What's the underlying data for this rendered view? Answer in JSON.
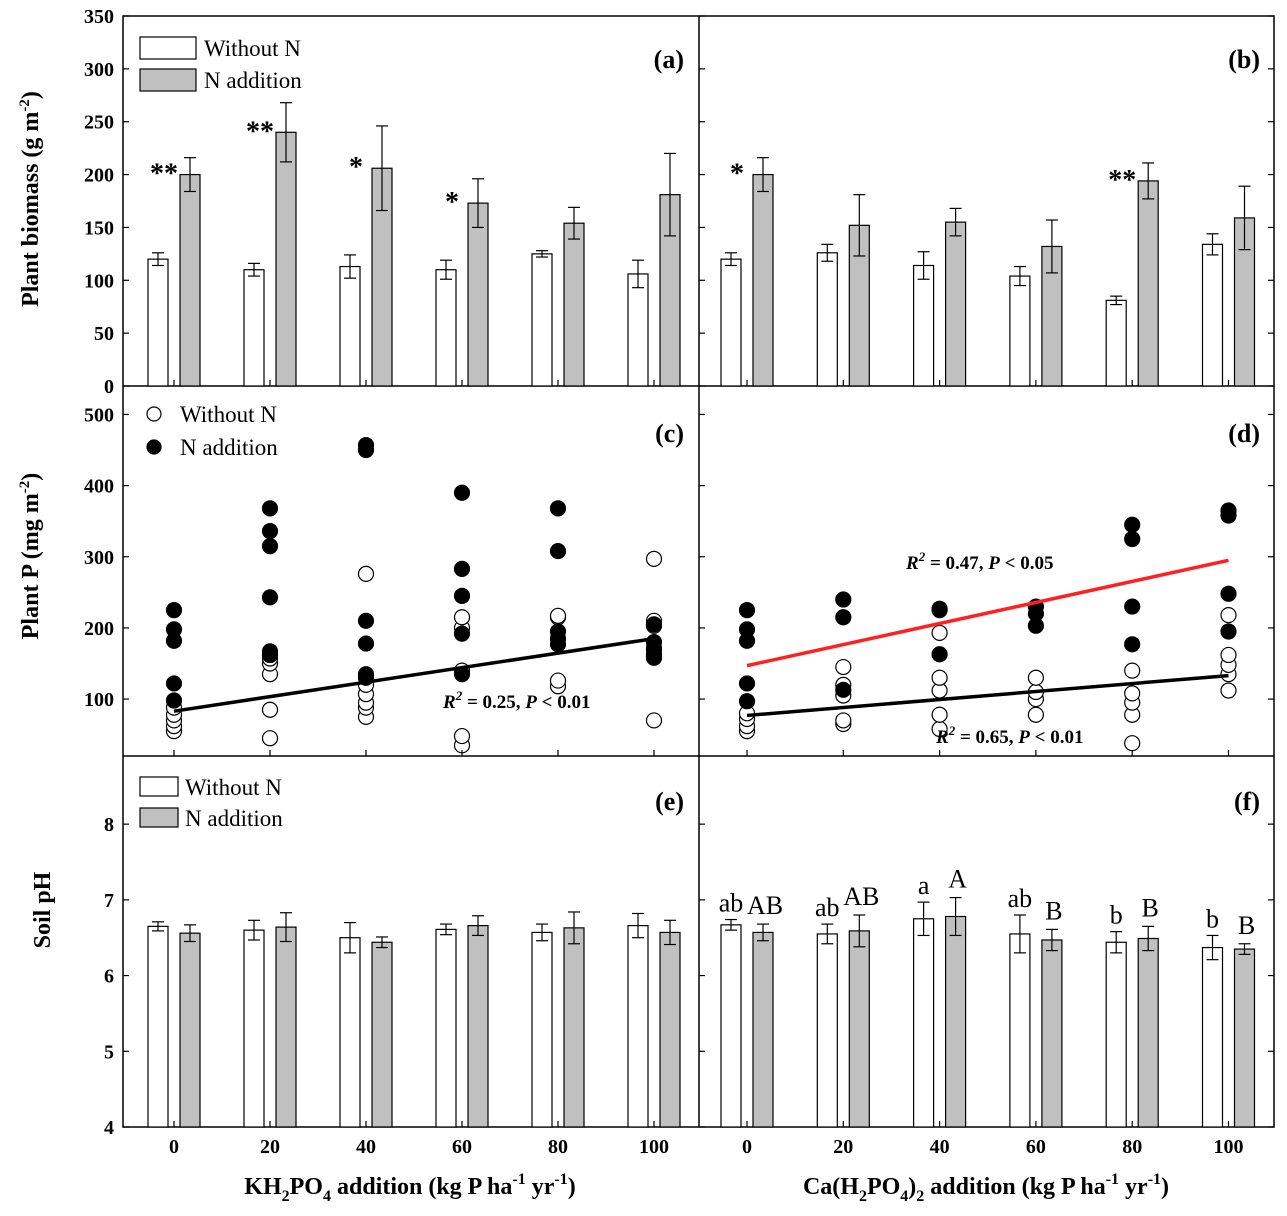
{
  "figure": {
    "ylabels": {
      "top": "Plant biomass (g m",
      "top_sup": "-2",
      "top_end": ")",
      "middle": "Plant P  (mg m",
      "middle_sup": "-2",
      "middle_end": ")",
      "bottom": "Soil pH"
    },
    "xlabels": {
      "left_a": "KH",
      "left_sub1": "2",
      "left_b": "PO",
      "left_sub2": "4",
      "left_c": " addition (kg P ha",
      "left_sup1": "-1",
      "left_d": " yr",
      "left_sup2": "-1",
      "left_e": ")",
      "right_a": "Ca(H",
      "right_sub1": "2",
      "right_b": "PO",
      "right_sub2": "4",
      "right_c": ")",
      "right_sub3": "2",
      "right_d": " addition (kg P ha",
      "right_sup1": "-1",
      "right_e": " yr",
      "right_sup2": "-1",
      "right_f": ")"
    },
    "legend": {
      "without_n": "Without N",
      "n_addition": "N addition"
    },
    "colors": {
      "without_n_fill": "#ffffff",
      "n_addition_fill": "#c0c0c0",
      "black_line": "#000000",
      "red_line": "#ff2020"
    }
  },
  "chart_data": [
    {
      "panel": "(a)",
      "type": "bar",
      "categories": [
        "0",
        "20",
        "40",
        "60",
        "80",
        "100"
      ],
      "ylim": [
        0,
        350
      ],
      "yticks": [
        0,
        50,
        100,
        150,
        200,
        250,
        300,
        350
      ],
      "series": [
        {
          "name": "Without N",
          "values": [
            120,
            110,
            113,
            110,
            125,
            106
          ],
          "errors": [
            6,
            6,
            11,
            9,
            3,
            13
          ]
        },
        {
          "name": "N addition",
          "values": [
            200,
            240,
            206,
            173,
            154,
            181
          ],
          "errors": [
            16,
            28,
            40,
            23,
            15,
            39
          ]
        }
      ],
      "annotations": [
        "**",
        "**",
        "*",
        "*",
        "",
        ""
      ]
    },
    {
      "panel": "(b)",
      "type": "bar",
      "categories": [
        "0",
        "20",
        "40",
        "60",
        "80",
        "100"
      ],
      "ylim": [
        0,
        350
      ],
      "series": [
        {
          "name": "Without N",
          "values": [
            120,
            126,
            114,
            104,
            81,
            134
          ],
          "errors": [
            6,
            8,
            13,
            9,
            4,
            10
          ]
        },
        {
          "name": "N addition",
          "values": [
            200,
            152,
            155,
            132,
            194,
            159
          ],
          "errors": [
            16,
            29,
            13,
            25,
            17,
            30
          ]
        }
      ],
      "annotations": [
        "*",
        "",
        "",
        "",
        "**",
        ""
      ]
    },
    {
      "panel": "(c)",
      "type": "scatter",
      "ylim": [
        20,
        540
      ],
      "yticks": [
        100,
        200,
        300,
        400,
        500
      ],
      "x": [
        0,
        20,
        40,
        60,
        80,
        100
      ],
      "series": [
        {
          "name": "Without N",
          "points": [
            [
              0,
              55
            ],
            [
              0,
              62
            ],
            [
              0,
              70
            ],
            [
              0,
              78
            ],
            [
              0,
              88
            ],
            [
              20,
              45
            ],
            [
              20,
              85
            ],
            [
              20,
              135
            ],
            [
              20,
              150
            ],
            [
              20,
              157
            ],
            [
              20,
              162
            ],
            [
              40,
              75
            ],
            [
              40,
              88
            ],
            [
              40,
              95
            ],
            [
              40,
              107
            ],
            [
              40,
              120
            ],
            [
              40,
              276
            ],
            [
              60,
              35
            ],
            [
              60,
              48
            ],
            [
              60,
              140
            ],
            [
              60,
              200
            ],
            [
              60,
              215
            ],
            [
              80,
              118
            ],
            [
              80,
              126
            ],
            [
              80,
              215
            ],
            [
              80,
              217
            ],
            [
              100,
              70
            ],
            [
              100,
              160
            ],
            [
              100,
              170
            ],
            [
              100,
              203
            ],
            [
              100,
              210
            ],
            [
              100,
              297
            ]
          ]
        },
        {
          "name": "N addition",
          "points": [
            [
              0,
              98
            ],
            [
              0,
              122
            ],
            [
              0,
              182
            ],
            [
              0,
              198
            ],
            [
              0,
              225
            ],
            [
              20,
              162
            ],
            [
              20,
              167
            ],
            [
              20,
              243
            ],
            [
              20,
              315
            ],
            [
              20,
              336
            ],
            [
              20,
              368
            ],
            [
              40,
              130
            ],
            [
              40,
              135
            ],
            [
              40,
              178
            ],
            [
              40,
              210
            ],
            [
              40,
              450
            ],
            [
              40,
              457
            ],
            [
              60,
              135
            ],
            [
              60,
              192
            ],
            [
              60,
              245
            ],
            [
              60,
              283
            ],
            [
              60,
              390
            ],
            [
              80,
              177
            ],
            [
              80,
              185
            ],
            [
              80,
              195
            ],
            [
              80,
              308
            ],
            [
              80,
              368
            ],
            [
              100,
              158
            ],
            [
              100,
              163
            ],
            [
              100,
              172
            ],
            [
              100,
              180
            ],
            [
              100,
              205
            ]
          ]
        }
      ],
      "fit_lines": [
        {
          "color": "black",
          "x": [
            0,
            100
          ],
          "y": [
            83,
            185
          ]
        }
      ],
      "stats": [
        {
          "pre": "R",
          "sup": "2",
          "mid": " = 0.25, ",
          "p": "P",
          "post": " < 0.01"
        }
      ]
    },
    {
      "panel": "(d)",
      "type": "scatter",
      "ylim": [
        20,
        540
      ],
      "x": [
        0,
        20,
        40,
        60,
        80,
        100
      ],
      "series": [
        {
          "name": "Without N",
          "points": [
            [
              0,
              55
            ],
            [
              0,
              62
            ],
            [
              0,
              72
            ],
            [
              0,
              80
            ],
            [
              20,
              65
            ],
            [
              20,
              70
            ],
            [
              20,
              105
            ],
            [
              20,
              120
            ],
            [
              20,
              145
            ],
            [
              40,
              58
            ],
            [
              40,
              78
            ],
            [
              40,
              112
            ],
            [
              40,
              130
            ],
            [
              40,
              193
            ],
            [
              60,
              78
            ],
            [
              60,
              100
            ],
            [
              60,
              110
            ],
            [
              60,
              130
            ],
            [
              80,
              38
            ],
            [
              80,
              78
            ],
            [
              80,
              95
            ],
            [
              80,
              108
            ],
            [
              80,
              140
            ],
            [
              100,
              112
            ],
            [
              100,
              135
            ],
            [
              100,
              148
            ],
            [
              100,
              162
            ],
            [
              100,
              218
            ]
          ]
        },
        {
          "name": "N addition",
          "points": [
            [
              0,
              97
            ],
            [
              0,
              122
            ],
            [
              0,
              182
            ],
            [
              0,
              198
            ],
            [
              0,
              225
            ],
            [
              20,
              113
            ],
            [
              20,
              215
            ],
            [
              20,
              240
            ],
            [
              40,
              163
            ],
            [
              40,
              225
            ],
            [
              40,
              227
            ],
            [
              60,
              203
            ],
            [
              60,
              220
            ],
            [
              60,
              230
            ],
            [
              80,
              177
            ],
            [
              80,
              230
            ],
            [
              80,
              325
            ],
            [
              80,
              345
            ],
            [
              100,
              195
            ],
            [
              100,
              248
            ],
            [
              100,
              358
            ],
            [
              100,
              365
            ]
          ]
        }
      ],
      "fit_lines": [
        {
          "color": "red",
          "x": [
            0,
            100
          ],
          "y": [
            147,
            295
          ]
        },
        {
          "color": "black",
          "x": [
            0,
            100
          ],
          "y": [
            77,
            133
          ]
        }
      ],
      "stats": [
        {
          "pre": "R",
          "sup": "2",
          "mid": " = 0.47, ",
          "p": "P",
          "post": " < 0.05"
        },
        {
          "pre": "R",
          "sup": "2",
          "mid": " = 0.65, ",
          "p": "P",
          "post": " < 0.01"
        }
      ]
    },
    {
      "panel": "(e)",
      "type": "bar",
      "categories": [
        "0",
        "20",
        "40",
        "60",
        "80",
        "100"
      ],
      "ylim": [
        4,
        8.9
      ],
      "yticks": [
        4,
        5,
        6,
        7,
        8
      ],
      "series": [
        {
          "name": "Without N",
          "values": [
            6.65,
            6.6,
            6.5,
            6.61,
            6.57,
            6.66
          ],
          "errors": [
            0.06,
            0.13,
            0.2,
            0.07,
            0.11,
            0.16
          ]
        },
        {
          "name": "N addition",
          "values": [
            6.56,
            6.64,
            6.44,
            6.66,
            6.63,
            6.57
          ],
          "errors": [
            0.11,
            0.19,
            0.07,
            0.13,
            0.21,
            0.16
          ]
        }
      ]
    },
    {
      "panel": "(f)",
      "type": "bar",
      "categories": [
        "0",
        "20",
        "40",
        "60",
        "80",
        "100"
      ],
      "ylim": [
        4,
        8.9
      ],
      "series": [
        {
          "name": "Without N",
          "values": [
            6.67,
            6.55,
            6.75,
            6.55,
            6.44,
            6.37
          ],
          "errors": [
            0.07,
            0.13,
            0.22,
            0.25,
            0.14,
            0.16
          ]
        },
        {
          "name": "N addition",
          "values": [
            6.57,
            6.59,
            6.78,
            6.47,
            6.49,
            6.35
          ],
          "errors": [
            0.11,
            0.21,
            0.25,
            0.14,
            0.16,
            0.07
          ]
        }
      ],
      "letters_without_n": [
        "ab",
        "ab",
        "a",
        "ab",
        "b",
        "b"
      ],
      "letters_n_addition": [
        "AB",
        "AB",
        "A",
        "B",
        "B",
        "B"
      ]
    }
  ],
  "xticks": [
    "0",
    "20",
    "40",
    "60",
    "80",
    "100"
  ]
}
